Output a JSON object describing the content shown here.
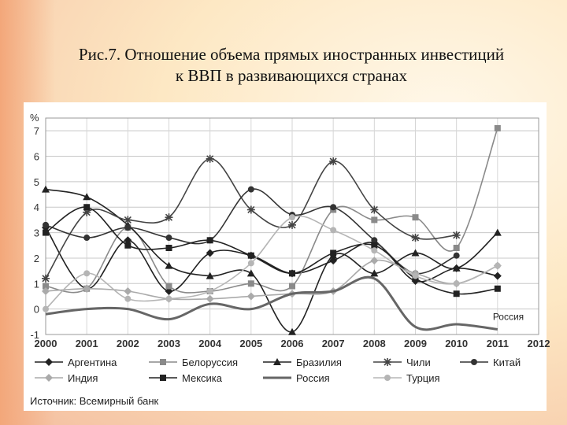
{
  "slide": {
    "caption_line1": "Рис.7. Отношение объема прямых иностранных инвестиций",
    "caption_line2": "к ВВП в развивающихся странах"
  },
  "chart_data": {
    "type": "line",
    "ylabel": "%",
    "ylim": [
      -1,
      7.5
    ],
    "xlim": [
      2000,
      2012
    ],
    "x_ticks": [
      "2000",
      "2001",
      "2002",
      "2003",
      "2004",
      "2005",
      "2006",
      "2007",
      "2008",
      "2009",
      "2010",
      "2011",
      "2012"
    ],
    "y_ticks": [
      "-1",
      "0",
      "1",
      "2",
      "3",
      "4",
      "5",
      "6",
      "7"
    ],
    "grid": true,
    "legend_position": "bottom",
    "source": "Источник: Всемирный банк",
    "annotation": "Россия",
    "x": [
      2000,
      2001,
      2002,
      2003,
      2004,
      2005,
      2006,
      2007,
      2008,
      2009,
      2010,
      2011
    ],
    "series": [
      {
        "name": "Аргентина",
        "color": "#222222",
        "marker": "diamond",
        "values": [
          3.2,
          0.8,
          2.7,
          0.7,
          2.2,
          2.1,
          1.4,
          1.9,
          2.6,
          1.1,
          1.6,
          1.3
        ]
      },
      {
        "name": "Белоруссия",
        "color": "#8a8a8a",
        "marker": "square",
        "values": [
          0.9,
          0.8,
          3.2,
          0.9,
          0.7,
          1.0,
          0.9,
          3.9,
          3.5,
          3.6,
          2.4,
          7.1
        ]
      },
      {
        "name": "Бразилия",
        "color": "#222222",
        "marker": "triangle",
        "values": [
          4.7,
          4.4,
          3.3,
          1.7,
          1.3,
          1.4,
          -0.9,
          2.1,
          1.4,
          2.2,
          1.6,
          3.0
        ]
      },
      {
        "name": "Чили",
        "color": "#444444",
        "marker": "star",
        "values": [
          1.2,
          3.8,
          3.5,
          3.6,
          5.9,
          3.9,
          3.3,
          5.8,
          3.9,
          2.8,
          2.9,
          null
        ]
      },
      {
        "name": "Китай",
        "color": "#333333",
        "marker": "circle",
        "values": [
          3.3,
          2.8,
          3.2,
          2.8,
          2.7,
          4.7,
          3.7,
          4.0,
          2.7,
          1.4,
          2.1,
          null
        ]
      },
      {
        "name": "Индия",
        "color": "#aaaaaa",
        "marker": "diamond",
        "values": [
          0.7,
          0.8,
          0.7,
          0.4,
          0.4,
          0.5,
          0.6,
          0.7,
          1.9,
          1.4,
          1.0,
          1.7
        ]
      },
      {
        "name": "Мексика",
        "color": "#222222",
        "marker": "square",
        "values": [
          3.0,
          4.0,
          2.5,
          2.4,
          2.7,
          2.1,
          1.4,
          2.2,
          2.5,
          1.2,
          0.6,
          0.8
        ]
      },
      {
        "name": "Россия",
        "color": "#666666",
        "marker": "none",
        "values": [
          -0.2,
          0.0,
          0.0,
          -0.4,
          0.2,
          0.0,
          0.6,
          0.7,
          1.2,
          -0.7,
          -0.6,
          -0.8
        ]
      },
      {
        "name": "Турция",
        "color": "#b5b5b5",
        "marker": "circle",
        "values": [
          0.0,
          1.4,
          0.4,
          0.4,
          0.7,
          1.8,
          3.6,
          3.1,
          2.3,
          1.3,
          1.0,
          1.7
        ]
      }
    ]
  }
}
